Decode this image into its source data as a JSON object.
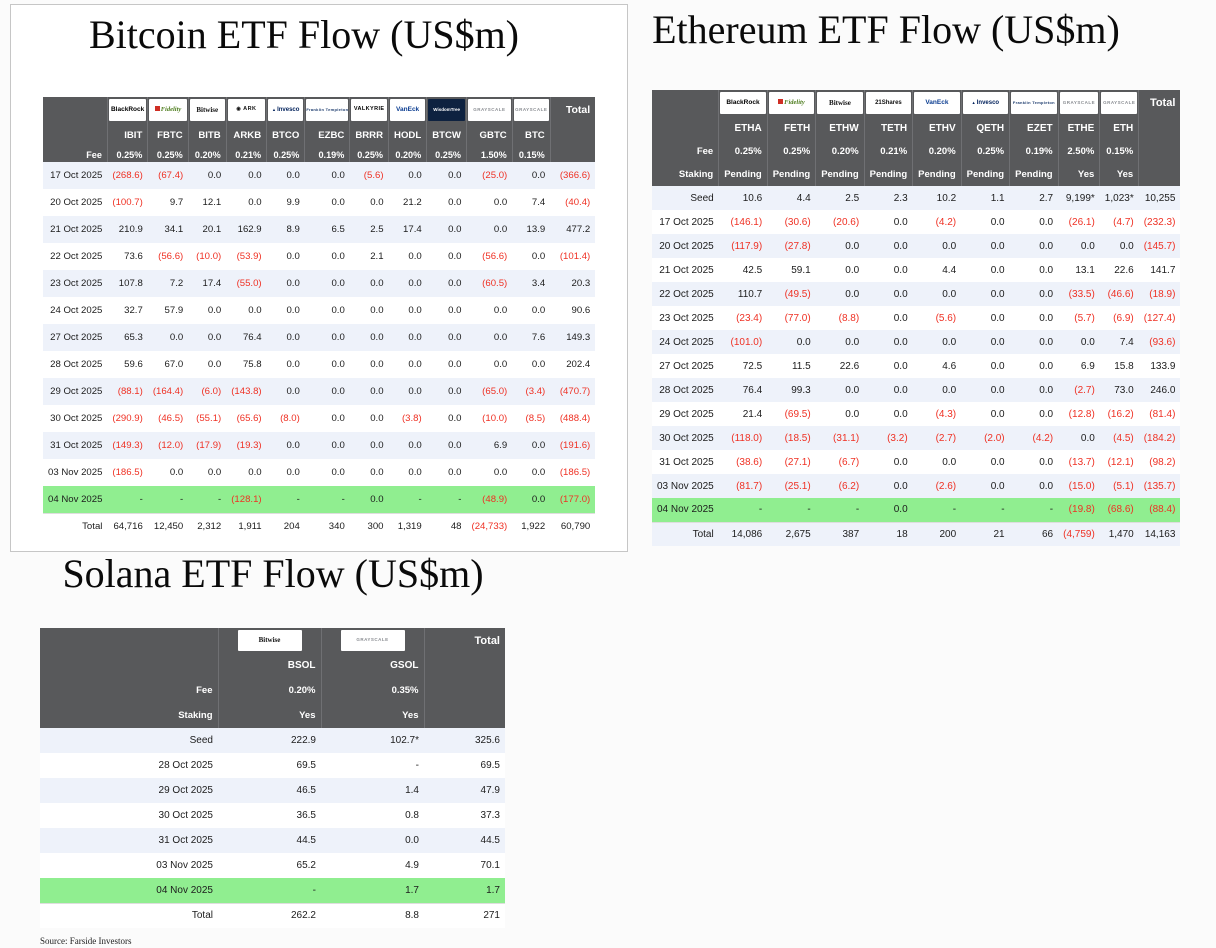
{
  "page": {
    "source_note": "Source: Farside Investors"
  },
  "chart_data": [
    {
      "type": "table",
      "id": "bitcoin",
      "title": "Bitcoin ETF Flow (US$m)",
      "total_label": "Total",
      "fee_label": "Fee",
      "staking_label": null,
      "columns": [
        {
          "provider": "BlackRock",
          "brand": "blackrock",
          "ticker": "IBIT",
          "fee": "0.25%"
        },
        {
          "provider": "Fidelity",
          "brand": "fidelity",
          "ticker": "FBTC",
          "fee": "0.25%"
        },
        {
          "provider": "Bitwise",
          "brand": "bitwise",
          "ticker": "BITB",
          "fee": "0.20%"
        },
        {
          "provider": "ARK",
          "brand": "ark",
          "ticker": "ARKB",
          "fee": "0.21%"
        },
        {
          "provider": "Invesco",
          "brand": "invesco",
          "ticker": "BTCO",
          "fee": "0.25%"
        },
        {
          "provider": "Franklin Templeton",
          "brand": "franklin",
          "ticker": "EZBC",
          "fee": "0.19%"
        },
        {
          "provider": "VALKYRIE",
          "brand": "valkyrie",
          "ticker": "BRRR",
          "fee": "0.25%"
        },
        {
          "provider": "VanEck",
          "brand": "vaneck",
          "ticker": "HODL",
          "fee": "0.20%"
        },
        {
          "provider": "WisdomTree",
          "brand": "wisdomtree",
          "ticker": "BTCW",
          "fee": "0.25%"
        },
        {
          "provider": "GRAYSCALE",
          "brand": "grayscale",
          "ticker": "GBTC",
          "fee": "1.50%"
        },
        {
          "provider": "GRAYSCALE",
          "brand": "grayscale",
          "ticker": "BTC",
          "fee": "0.15%"
        }
      ],
      "rows": [
        {
          "label": "17 Oct 2025",
          "cells": [
            "(268.6)",
            "(67.4)",
            "0.0",
            "0.0",
            "0.0",
            "0.0",
            "(5.6)",
            "0.0",
            "0.0",
            "(25.0)",
            "0.0"
          ],
          "total": "(366.6)"
        },
        {
          "label": "20 Oct 2025",
          "cells": [
            "(100.7)",
            "9.7",
            "12.1",
            "0.0",
            "9.9",
            "0.0",
            "0.0",
            "21.2",
            "0.0",
            "0.0",
            "7.4"
          ],
          "total": "(40.4)"
        },
        {
          "label": "21 Oct 2025",
          "cells": [
            "210.9",
            "34.1",
            "20.1",
            "162.9",
            "8.9",
            "6.5",
            "2.5",
            "17.4",
            "0.0",
            "0.0",
            "13.9"
          ],
          "total": "477.2"
        },
        {
          "label": "22 Oct 2025",
          "cells": [
            "73.6",
            "(56.6)",
            "(10.0)",
            "(53.9)",
            "0.0",
            "0.0",
            "2.1",
            "0.0",
            "0.0",
            "(56.6)",
            "0.0"
          ],
          "total": "(101.4)"
        },
        {
          "label": "23 Oct 2025",
          "cells": [
            "107.8",
            "7.2",
            "17.4",
            "(55.0)",
            "0.0",
            "0.0",
            "0.0",
            "0.0",
            "0.0",
            "(60.5)",
            "3.4"
          ],
          "total": "20.3"
        },
        {
          "label": "24 Oct 2025",
          "cells": [
            "32.7",
            "57.9",
            "0.0",
            "0.0",
            "0.0",
            "0.0",
            "0.0",
            "0.0",
            "0.0",
            "0.0",
            "0.0"
          ],
          "total": "90.6"
        },
        {
          "label": "27 Oct 2025",
          "cells": [
            "65.3",
            "0.0",
            "0.0",
            "76.4",
            "0.0",
            "0.0",
            "0.0",
            "0.0",
            "0.0",
            "0.0",
            "7.6"
          ],
          "total": "149.3"
        },
        {
          "label": "28 Oct 2025",
          "cells": [
            "59.6",
            "67.0",
            "0.0",
            "75.8",
            "0.0",
            "0.0",
            "0.0",
            "0.0",
            "0.0",
            "0.0",
            "0.0"
          ],
          "total": "202.4"
        },
        {
          "label": "29 Oct 2025",
          "cells": [
            "(88.1)",
            "(164.4)",
            "(6.0)",
            "(143.8)",
            "0.0",
            "0.0",
            "0.0",
            "0.0",
            "0.0",
            "(65.0)",
            "(3.4)"
          ],
          "total": "(470.7)"
        },
        {
          "label": "30 Oct 2025",
          "cells": [
            "(290.9)",
            "(46.5)",
            "(55.1)",
            "(65.6)",
            "(8.0)",
            "0.0",
            "0.0",
            "(3.8)",
            "0.0",
            "(10.0)",
            "(8.5)"
          ],
          "total": "(488.4)"
        },
        {
          "label": "31 Oct 2025",
          "cells": [
            "(149.3)",
            "(12.0)",
            "(17.9)",
            "(19.3)",
            "0.0",
            "0.0",
            "0.0",
            "0.0",
            "0.0",
            "6.9",
            "0.0"
          ],
          "total": "(191.6)"
        },
        {
          "label": "03 Nov 2025",
          "cells": [
            "(186.5)",
            "0.0",
            "0.0",
            "0.0",
            "0.0",
            "0.0",
            "0.0",
            "0.0",
            "0.0",
            "0.0",
            "0.0"
          ],
          "total": "(186.5)"
        },
        {
          "label": "04 Nov 2025",
          "cells": [
            "-",
            "-",
            "-",
            "(128.1)",
            "-",
            "-",
            "0.0",
            "-",
            "-",
            "(48.9)",
            "0.0"
          ],
          "total": "(177.0)",
          "highlight": true
        }
      ],
      "total_row": {
        "label": "Total",
        "cells": [
          "64,716",
          "12,450",
          "2,312",
          "1,911",
          "204",
          "340",
          "300",
          "1,319",
          "48",
          "(24,733)",
          "1,922"
        ],
        "total": "60,790"
      }
    },
    {
      "type": "table",
      "id": "ethereum",
      "title": "Ethereum ETF Flow (US$m)",
      "total_label": "Total",
      "fee_label": "Fee",
      "staking_label": "Staking",
      "columns": [
        {
          "provider": "BlackRock",
          "brand": "blackrock",
          "ticker": "ETHA",
          "fee": "0.25%",
          "staking": "Pending"
        },
        {
          "provider": "Fidelity",
          "brand": "fidelity",
          "ticker": "FETH",
          "fee": "0.25%",
          "staking": "Pending"
        },
        {
          "provider": "Bitwise",
          "brand": "bitwise",
          "ticker": "ETHW",
          "fee": "0.20%",
          "staking": "Pending"
        },
        {
          "provider": "21Shares",
          "brand": "shares21",
          "ticker": "TETH",
          "fee": "0.21%",
          "staking": "Pending"
        },
        {
          "provider": "VanEck",
          "brand": "vaneck",
          "ticker": "ETHV",
          "fee": "0.20%",
          "staking": "Pending"
        },
        {
          "provider": "Invesco",
          "brand": "invesco",
          "ticker": "QETH",
          "fee": "0.25%",
          "staking": "Pending"
        },
        {
          "provider": "Franklin Templeton",
          "brand": "franklin",
          "ticker": "EZET",
          "fee": "0.19%",
          "staking": "Pending"
        },
        {
          "provider": "GRAYSCALE",
          "brand": "grayscale",
          "ticker": "ETHE",
          "fee": "2.50%",
          "staking": "Yes"
        },
        {
          "provider": "GRAYSCALE",
          "brand": "grayscale",
          "ticker": "ETH",
          "fee": "0.15%",
          "staking": "Yes"
        }
      ],
      "rows": [
        {
          "label": "Seed",
          "cells": [
            "10.6",
            "4.4",
            "2.5",
            "2.3",
            "10.2",
            "1.1",
            "2.7",
            "9,199*",
            "1,023*"
          ],
          "total": "10,255"
        },
        {
          "label": "17 Oct 2025",
          "cells": [
            "(146.1)",
            "(30.6)",
            "(20.6)",
            "0.0",
            "(4.2)",
            "0.0",
            "0.0",
            "(26.1)",
            "(4.7)"
          ],
          "total": "(232.3)"
        },
        {
          "label": "20 Oct 2025",
          "cells": [
            "(117.9)",
            "(27.8)",
            "0.0",
            "0.0",
            "0.0",
            "0.0",
            "0.0",
            "0.0",
            "0.0"
          ],
          "total": "(145.7)"
        },
        {
          "label": "21 Oct 2025",
          "cells": [
            "42.5",
            "59.1",
            "0.0",
            "0.0",
            "4.4",
            "0.0",
            "0.0",
            "13.1",
            "22.6"
          ],
          "total": "141.7"
        },
        {
          "label": "22 Oct 2025",
          "cells": [
            "110.7",
            "(49.5)",
            "0.0",
            "0.0",
            "0.0",
            "0.0",
            "0.0",
            "(33.5)",
            "(46.6)"
          ],
          "total": "(18.9)"
        },
        {
          "label": "23 Oct 2025",
          "cells": [
            "(23.4)",
            "(77.0)",
            "(8.8)",
            "0.0",
            "(5.6)",
            "0.0",
            "0.0",
            "(5.7)",
            "(6.9)"
          ],
          "total": "(127.4)"
        },
        {
          "label": "24 Oct 2025",
          "cells": [
            "(101.0)",
            "0.0",
            "0.0",
            "0.0",
            "0.0",
            "0.0",
            "0.0",
            "0.0",
            "7.4"
          ],
          "total": "(93.6)"
        },
        {
          "label": "27 Oct 2025",
          "cells": [
            "72.5",
            "11.5",
            "22.6",
            "0.0",
            "4.6",
            "0.0",
            "0.0",
            "6.9",
            "15.8"
          ],
          "total": "133.9"
        },
        {
          "label": "28 Oct 2025",
          "cells": [
            "76.4",
            "99.3",
            "0.0",
            "0.0",
            "0.0",
            "0.0",
            "0.0",
            "(2.7)",
            "73.0"
          ],
          "total": "246.0"
        },
        {
          "label": "29 Oct 2025",
          "cells": [
            "21.4",
            "(69.5)",
            "0.0",
            "0.0",
            "(4.3)",
            "0.0",
            "0.0",
            "(12.8)",
            "(16.2)"
          ],
          "total": "(81.4)"
        },
        {
          "label": "30 Oct 2025",
          "cells": [
            "(118.0)",
            "(18.5)",
            "(31.1)",
            "(3.2)",
            "(2.7)",
            "(2.0)",
            "(4.2)",
            "0.0",
            "(4.5)"
          ],
          "total": "(184.2)"
        },
        {
          "label": "31 Oct 2025",
          "cells": [
            "(38.6)",
            "(27.1)",
            "(6.7)",
            "0.0",
            "0.0",
            "0.0",
            "0.0",
            "(13.7)",
            "(12.1)"
          ],
          "total": "(98.2)"
        },
        {
          "label": "03 Nov 2025",
          "cells": [
            "(81.7)",
            "(25.1)",
            "(6.2)",
            "0.0",
            "(2.6)",
            "0.0",
            "0.0",
            "(15.0)",
            "(5.1)"
          ],
          "total": "(135.7)"
        },
        {
          "label": "04 Nov 2025",
          "cells": [
            "-",
            "-",
            "-",
            "0.0",
            "-",
            "-",
            "-",
            "(19.8)",
            "(68.6)"
          ],
          "total": "(88.4)",
          "highlight": true
        }
      ],
      "total_row": {
        "label": "Total",
        "cells": [
          "14,086",
          "2,675",
          "387",
          "18",
          "200",
          "21",
          "66",
          "(4,759)",
          "1,470"
        ],
        "total": "14,163"
      }
    },
    {
      "type": "table",
      "id": "solana",
      "title": "Solana ETF Flow (US$m)",
      "total_label": "Total",
      "fee_label": "Fee",
      "staking_label": "Staking",
      "columns": [
        {
          "provider": "Bitwise",
          "brand": "bitwise",
          "ticker": "BSOL",
          "fee": "0.20%",
          "staking": "Yes"
        },
        {
          "provider": "GRAYSCALE",
          "brand": "grayscale",
          "ticker": "GSOL",
          "fee": "0.35%",
          "staking": "Yes"
        }
      ],
      "rows": [
        {
          "label": "Seed",
          "cells": [
            "222.9",
            "102.7*"
          ],
          "total": "325.6"
        },
        {
          "label": "28 Oct 2025",
          "cells": [
            "69.5",
            "-"
          ],
          "total": "69.5"
        },
        {
          "label": "29 Oct 2025",
          "cells": [
            "46.5",
            "1.4"
          ],
          "total": "47.9"
        },
        {
          "label": "30 Oct 2025",
          "cells": [
            "36.5",
            "0.8"
          ],
          "total": "37.3"
        },
        {
          "label": "31 Oct 2025",
          "cells": [
            "44.5",
            "0.0"
          ],
          "total": "44.5"
        },
        {
          "label": "03 Nov 2025",
          "cells": [
            "65.2",
            "4.9"
          ],
          "total": "70.1"
        },
        {
          "label": "04 Nov 2025",
          "cells": [
            "-",
            "1.7"
          ],
          "total": "1.7",
          "highlight": true
        }
      ],
      "total_row": {
        "label": "Total",
        "cells": [
          "262.2",
          "8.8"
        ],
        "total": "271"
      }
    }
  ]
}
